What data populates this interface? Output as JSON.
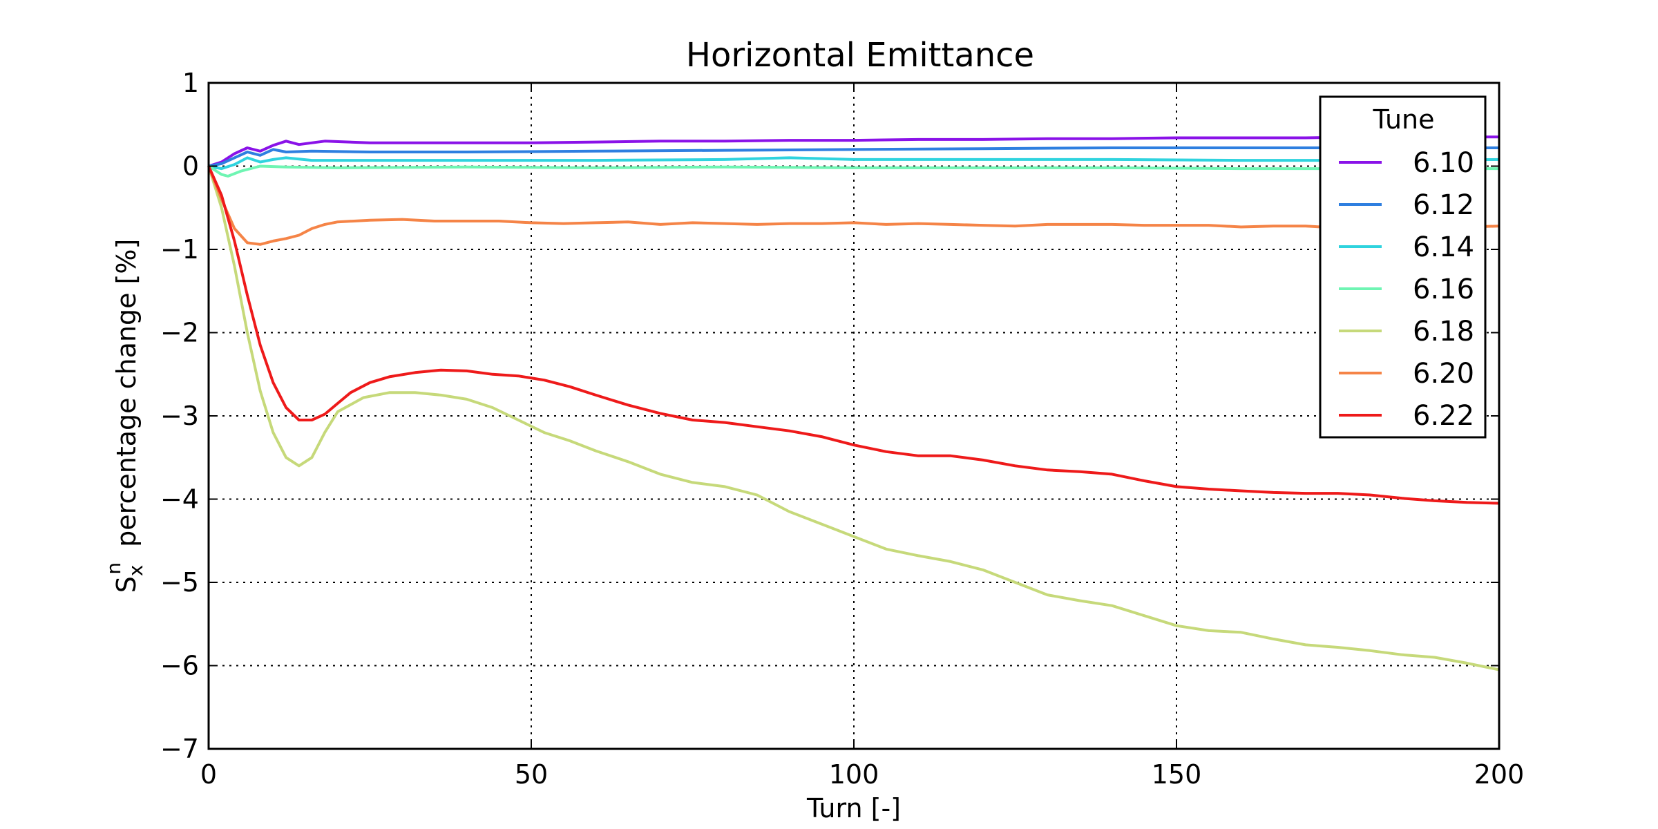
{
  "chart_data": {
    "type": "line",
    "title": "Horizontal Emittance",
    "xlabel": "Turn [-]",
    "ylabel": {
      "symbol": "S",
      "superscript": "n",
      "subscript": "x",
      "text": "percentage change [%]"
    },
    "xlim": [
      0,
      200
    ],
    "ylim": [
      -7,
      1
    ],
    "xticks": [
      0,
      50,
      100,
      150,
      200
    ],
    "xtick_labels": [
      "0",
      "50",
      "100",
      "150",
      "200"
    ],
    "yticks": [
      1,
      0,
      -1,
      -2,
      -3,
      -4,
      -5,
      -6,
      -7
    ],
    "ytick_labels": [
      "1",
      "0",
      "−1",
      "−2",
      "−3",
      "−4",
      "−5",
      "−6",
      "−7"
    ],
    "grid": true,
    "legend": {
      "title": "Tune",
      "placement": "top-right"
    },
    "series": [
      {
        "name": "6.10",
        "color": "#8a12e8",
        "points": [
          [
            0,
            0
          ],
          [
            2,
            0.05
          ],
          [
            4,
            0.15
          ],
          [
            6,
            0.22
          ],
          [
            8,
            0.18
          ],
          [
            10,
            0.25
          ],
          [
            12,
            0.3
          ],
          [
            14,
            0.26
          ],
          [
            18,
            0.3
          ],
          [
            25,
            0.28
          ],
          [
            30,
            0.28
          ],
          [
            40,
            0.28
          ],
          [
            50,
            0.28
          ],
          [
            60,
            0.29
          ],
          [
            70,
            0.3
          ],
          [
            80,
            0.3
          ],
          [
            90,
            0.31
          ],
          [
            100,
            0.31
          ],
          [
            110,
            0.32
          ],
          [
            120,
            0.32
          ],
          [
            130,
            0.33
          ],
          [
            140,
            0.33
          ],
          [
            150,
            0.34
          ],
          [
            160,
            0.34
          ],
          [
            170,
            0.34
          ],
          [
            180,
            0.35
          ],
          [
            190,
            0.35
          ],
          [
            200,
            0.35
          ]
        ]
      },
      {
        "name": "6.12",
        "color": "#2e7fe0",
        "points": [
          [
            0,
            0
          ],
          [
            2,
            0.03
          ],
          [
            4,
            0.1
          ],
          [
            6,
            0.17
          ],
          [
            8,
            0.13
          ],
          [
            10,
            0.2
          ],
          [
            12,
            0.17
          ],
          [
            16,
            0.18
          ],
          [
            25,
            0.17
          ],
          [
            40,
            0.17
          ],
          [
            60,
            0.18
          ],
          [
            80,
            0.19
          ],
          [
            100,
            0.2
          ],
          [
            120,
            0.21
          ],
          [
            140,
            0.22
          ],
          [
            160,
            0.22
          ],
          [
            180,
            0.22
          ],
          [
            200,
            0.22
          ]
        ]
      },
      {
        "name": "6.14",
        "color": "#2fd3de",
        "points": [
          [
            0,
            0
          ],
          [
            2,
            -0.03
          ],
          [
            4,
            0.02
          ],
          [
            6,
            0.1
          ],
          [
            8,
            0.05
          ],
          [
            10,
            0.08
          ],
          [
            12,
            0.1
          ],
          [
            16,
            0.07
          ],
          [
            25,
            0.07
          ],
          [
            40,
            0.07
          ],
          [
            60,
            0.07
          ],
          [
            80,
            0.08
          ],
          [
            90,
            0.1
          ],
          [
            100,
            0.08
          ],
          [
            120,
            0.08
          ],
          [
            140,
            0.08
          ],
          [
            160,
            0.07
          ],
          [
            180,
            0.07
          ],
          [
            200,
            0.08
          ]
        ]
      },
      {
        "name": "6.16",
        "color": "#6ff5b3",
        "points": [
          [
            0,
            0
          ],
          [
            2,
            -0.1
          ],
          [
            3,
            -0.12
          ],
          [
            5,
            -0.06
          ],
          [
            8,
            0
          ],
          [
            12,
            -0.01
          ],
          [
            20,
            -0.02
          ],
          [
            40,
            -0.01
          ],
          [
            60,
            -0.02
          ],
          [
            80,
            -0.01
          ],
          [
            100,
            -0.02
          ],
          [
            120,
            -0.02
          ],
          [
            140,
            -0.02
          ],
          [
            160,
            -0.03
          ],
          [
            180,
            -0.03
          ],
          [
            200,
            -0.03
          ]
        ]
      },
      {
        "name": "6.18",
        "color": "#c6d97a",
        "points": [
          [
            0,
            0
          ],
          [
            2,
            -0.5
          ],
          [
            4,
            -1.2
          ],
          [
            6,
            -2.0
          ],
          [
            8,
            -2.7
          ],
          [
            10,
            -3.2
          ],
          [
            12,
            -3.5
          ],
          [
            14,
            -3.6
          ],
          [
            16,
            -3.5
          ],
          [
            18,
            -3.2
          ],
          [
            20,
            -2.95
          ],
          [
            24,
            -2.78
          ],
          [
            28,
            -2.72
          ],
          [
            32,
            -2.72
          ],
          [
            36,
            -2.75
          ],
          [
            40,
            -2.8
          ],
          [
            44,
            -2.9
          ],
          [
            48,
            -3.05
          ],
          [
            52,
            -3.2
          ],
          [
            56,
            -3.3
          ],
          [
            60,
            -3.42
          ],
          [
            65,
            -3.55
          ],
          [
            70,
            -3.7
          ],
          [
            75,
            -3.8
          ],
          [
            80,
            -3.85
          ],
          [
            85,
            -3.95
          ],
          [
            90,
            -4.15
          ],
          [
            95,
            -4.3
          ],
          [
            100,
            -4.45
          ],
          [
            105,
            -4.6
          ],
          [
            110,
            -4.68
          ],
          [
            115,
            -4.75
          ],
          [
            120,
            -4.85
          ],
          [
            125,
            -5.0
          ],
          [
            130,
            -5.15
          ],
          [
            135,
            -5.22
          ],
          [
            140,
            -5.28
          ],
          [
            145,
            -5.4
          ],
          [
            150,
            -5.52
          ],
          [
            155,
            -5.58
          ],
          [
            160,
            -5.6
          ],
          [
            165,
            -5.68
          ],
          [
            170,
            -5.75
          ],
          [
            175,
            -5.78
          ],
          [
            180,
            -5.82
          ],
          [
            185,
            -5.87
          ],
          [
            190,
            -5.9
          ],
          [
            195,
            -5.97
          ],
          [
            200,
            -6.05
          ]
        ]
      },
      {
        "name": "6.20",
        "color": "#f58447",
        "points": [
          [
            0,
            0
          ],
          [
            2,
            -0.4
          ],
          [
            4,
            -0.75
          ],
          [
            6,
            -0.92
          ],
          [
            8,
            -0.94
          ],
          [
            10,
            -0.9
          ],
          [
            12,
            -0.87
          ],
          [
            14,
            -0.83
          ],
          [
            16,
            -0.75
          ],
          [
            18,
            -0.7
          ],
          [
            20,
            -0.67
          ],
          [
            25,
            -0.65
          ],
          [
            30,
            -0.64
          ],
          [
            35,
            -0.66
          ],
          [
            40,
            -0.66
          ],
          [
            45,
            -0.66
          ],
          [
            50,
            -0.68
          ],
          [
            55,
            -0.69
          ],
          [
            60,
            -0.68
          ],
          [
            65,
            -0.67
          ],
          [
            70,
            -0.7
          ],
          [
            75,
            -0.68
          ],
          [
            80,
            -0.69
          ],
          [
            85,
            -0.7
          ],
          [
            90,
            -0.69
          ],
          [
            95,
            -0.69
          ],
          [
            100,
            -0.68
          ],
          [
            105,
            -0.7
          ],
          [
            110,
            -0.69
          ],
          [
            115,
            -0.7
          ],
          [
            120,
            -0.71
          ],
          [
            125,
            -0.72
          ],
          [
            130,
            -0.7
          ],
          [
            135,
            -0.7
          ],
          [
            140,
            -0.7
          ],
          [
            145,
            -0.71
          ],
          [
            150,
            -0.71
          ],
          [
            155,
            -0.71
          ],
          [
            160,
            -0.73
          ],
          [
            165,
            -0.72
          ],
          [
            170,
            -0.72
          ],
          [
            175,
            -0.74
          ],
          [
            180,
            -0.73
          ],
          [
            185,
            -0.73
          ],
          [
            190,
            -0.73
          ],
          [
            195,
            -0.73
          ],
          [
            200,
            -0.72
          ]
        ]
      },
      {
        "name": "6.22",
        "color": "#ee1a1a",
        "points": [
          [
            0,
            0
          ],
          [
            2,
            -0.35
          ],
          [
            4,
            -0.9
          ],
          [
            6,
            -1.55
          ],
          [
            8,
            -2.15
          ],
          [
            10,
            -2.6
          ],
          [
            12,
            -2.9
          ],
          [
            14,
            -3.05
          ],
          [
            16,
            -3.05
          ],
          [
            18,
            -2.98
          ],
          [
            20,
            -2.85
          ],
          [
            22,
            -2.72
          ],
          [
            25,
            -2.6
          ],
          [
            28,
            -2.53
          ],
          [
            32,
            -2.48
          ],
          [
            36,
            -2.45
          ],
          [
            40,
            -2.46
          ],
          [
            44,
            -2.5
          ],
          [
            48,
            -2.52
          ],
          [
            52,
            -2.57
          ],
          [
            56,
            -2.65
          ],
          [
            60,
            -2.75
          ],
          [
            65,
            -2.87
          ],
          [
            70,
            -2.97
          ],
          [
            75,
            -3.05
          ],
          [
            80,
            -3.08
          ],
          [
            85,
            -3.13
          ],
          [
            90,
            -3.18
          ],
          [
            95,
            -3.25
          ],
          [
            100,
            -3.35
          ],
          [
            105,
            -3.43
          ],
          [
            110,
            -3.48
          ],
          [
            115,
            -3.48
          ],
          [
            120,
            -3.53
          ],
          [
            125,
            -3.6
          ],
          [
            130,
            -3.65
          ],
          [
            135,
            -3.67
          ],
          [
            140,
            -3.7
          ],
          [
            145,
            -3.78
          ],
          [
            150,
            -3.85
          ],
          [
            155,
            -3.88
          ],
          [
            160,
            -3.9
          ],
          [
            165,
            -3.92
          ],
          [
            170,
            -3.93
          ],
          [
            175,
            -3.93
          ],
          [
            180,
            -3.95
          ],
          [
            185,
            -3.99
          ],
          [
            190,
            -4.02
          ],
          [
            195,
            -4.04
          ],
          [
            200,
            -4.05
          ]
        ]
      }
    ]
  }
}
